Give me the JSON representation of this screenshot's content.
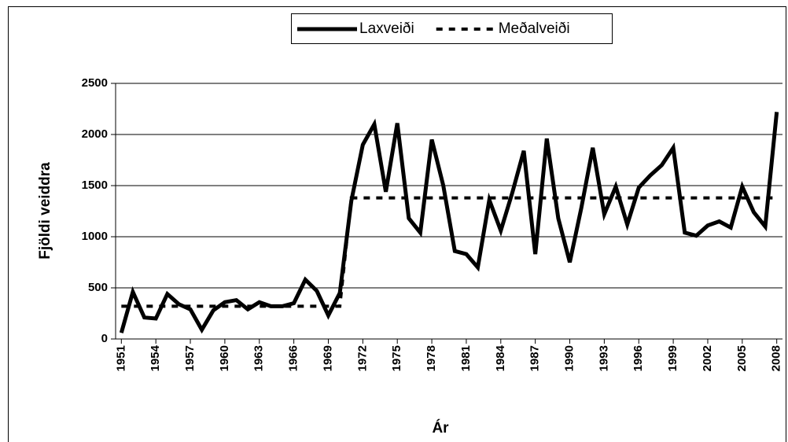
{
  "chart_data": {
    "type": "line",
    "x_label": "Ár",
    "y_label": "Fjöldi veiddra",
    "x": [
      1951,
      1952,
      1953,
      1954,
      1955,
      1956,
      1957,
      1958,
      1959,
      1960,
      1961,
      1962,
      1963,
      1964,
      1965,
      1966,
      1967,
      1968,
      1969,
      1970,
      1971,
      1972,
      1973,
      1974,
      1975,
      1976,
      1977,
      1978,
      1979,
      1980,
      1981,
      1982,
      1983,
      1984,
      1985,
      1986,
      1987,
      1988,
      1989,
      1990,
      1991,
      1992,
      1993,
      1994,
      1995,
      1996,
      1997,
      1998,
      1999,
      2000,
      2001,
      2002,
      2003,
      2004,
      2005,
      2006,
      2007,
      2008
    ],
    "series": [
      {
        "name": "Laxveiði",
        "color": "#000000",
        "dash": false,
        "values": [
          60,
          460,
          210,
          200,
          440,
          340,
          290,
          90,
          280,
          360,
          380,
          290,
          360,
          320,
          320,
          350,
          580,
          470,
          230,
          450,
          1350,
          1900,
          2100,
          1440,
          2110,
          1180,
          1040,
          1950,
          1500,
          860,
          830,
          700,
          1360,
          1060,
          1430,
          1840,
          830,
          1960,
          1180,
          750,
          1280,
          1870,
          1220,
          1490,
          1120,
          1480,
          1600,
          1700,
          1870,
          1040,
          1010,
          1110,
          1150,
          1090,
          1490,
          1240,
          1100,
          2220
        ]
      },
      {
        "name": "Meðalveiði",
        "color": "#000000",
        "dash": true,
        "values": [
          320,
          320,
          320,
          320,
          320,
          320,
          320,
          320,
          320,
          320,
          320,
          320,
          320,
          320,
          320,
          320,
          320,
          320,
          320,
          320,
          1380,
          1380,
          1380,
          1380,
          1380,
          1380,
          1380,
          1380,
          1380,
          1380,
          1380,
          1380,
          1380,
          1380,
          1380,
          1380,
          1380,
          1380,
          1380,
          1380,
          1380,
          1380,
          1380,
          1380,
          1380,
          1380,
          1380,
          1380,
          1380,
          1380,
          1380,
          1380,
          1380,
          1380,
          1380,
          1380,
          1380,
          1380
        ]
      }
    ],
    "xlim": [
      1950.5,
      2008.5
    ],
    "xticks": [
      1951,
      1954,
      1957,
      1960,
      1963,
      1966,
      1969,
      1972,
      1975,
      1978,
      1981,
      1984,
      1987,
      1990,
      1993,
      1996,
      1999,
      2002,
      2005,
      2008
    ],
    "ylim": [
      0,
      2500
    ],
    "yticks": [
      0,
      500,
      1000,
      1500,
      2000,
      2500
    ],
    "grid": true,
    "legend": "top"
  }
}
